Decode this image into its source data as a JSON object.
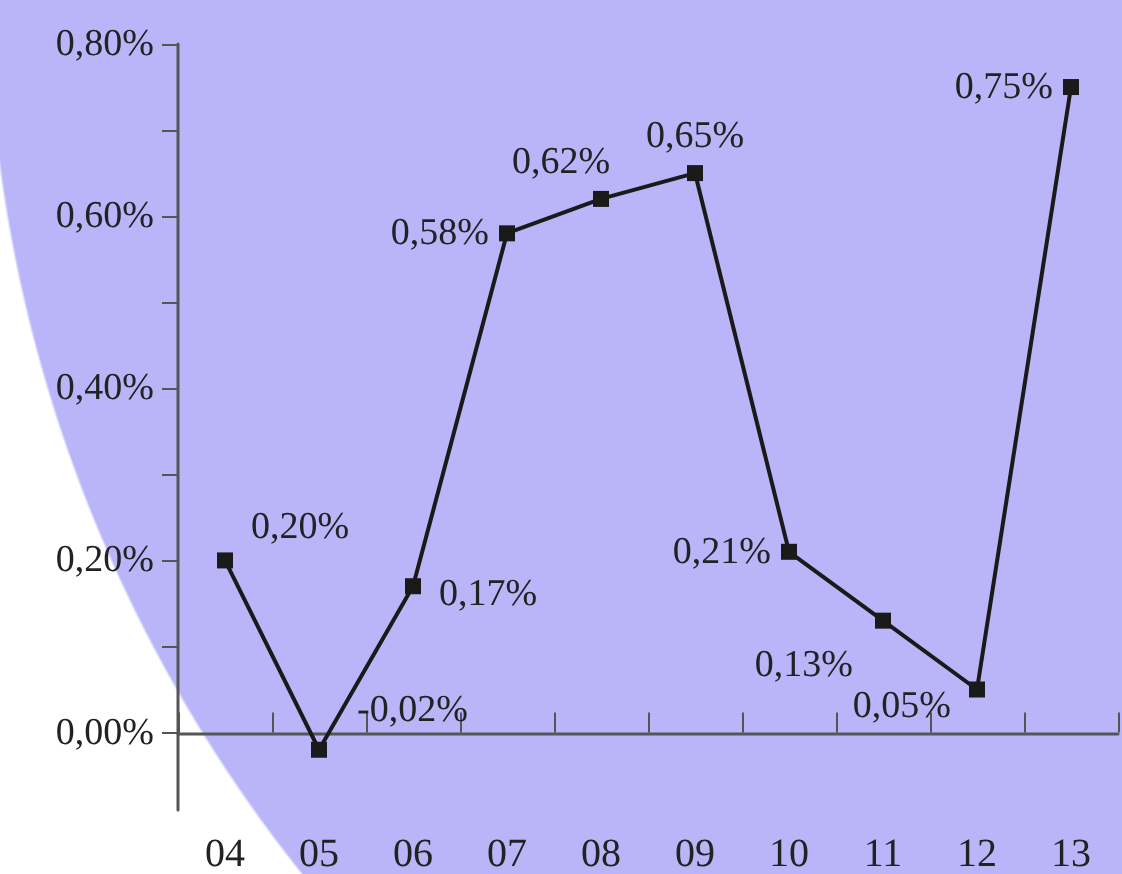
{
  "chart_data": {
    "type": "line",
    "categories": [
      "04",
      "05",
      "06",
      "07",
      "08",
      "09",
      "10",
      "11",
      "12",
      "13"
    ],
    "series": [
      {
        "color": "#1a1a1a",
        "values": [
          0.2,
          -0.02,
          0.17,
          0.58,
          0.62,
          0.65,
          0.21,
          0.13,
          0.05,
          0.75
        ],
        "value_labels": [
          "0,20%",
          "-0,02%",
          "0,17%",
          "0,58%",
          "0,62%",
          "0,65%",
          "0,21%",
          "0,13%",
          "0,05%",
          "0,75%"
        ]
      }
    ],
    "ylim": [
      -0.09,
      0.8
    ],
    "yticks": [
      {
        "value": 0,
        "label": "0,00%"
      },
      {
        "value": 0.1,
        "label": null
      },
      {
        "value": 0.2,
        "label": "0,20%"
      },
      {
        "value": 0.3,
        "label": null
      },
      {
        "value": 0.4,
        "label": "0,40%"
      },
      {
        "value": 0.5,
        "label": null
      },
      {
        "value": 0.6,
        "label": "0,60%"
      },
      {
        "value": 0.7,
        "label": null
      },
      {
        "value": 0.8,
        "label": "0,80%"
      }
    ],
    "marker": "square",
    "line_style": "solid",
    "grid": false
  }
}
